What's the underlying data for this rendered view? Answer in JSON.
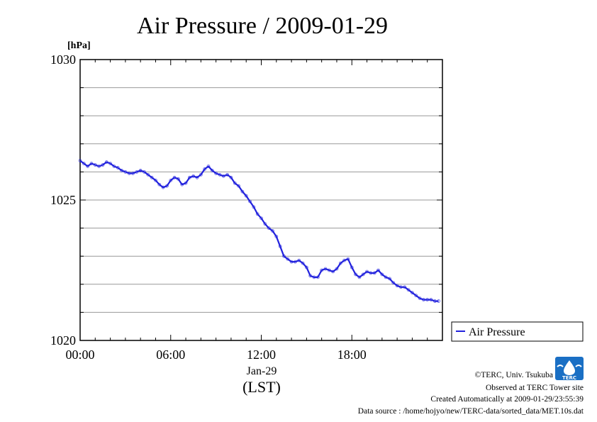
{
  "chart_data": {
    "type": "line",
    "title": "Air Pressure / 2009-01-29",
    "ylabel": "[hPa]",
    "ylim": [
      1020,
      1030
    ],
    "yticks": [
      "1030",
      "1025",
      "1020"
    ],
    "y_minor_step": 1,
    "xlim": [
      0,
      24
    ],
    "xticks": [
      {
        "value": 0,
        "label": "00:00"
      },
      {
        "value": 6,
        "label": "06:00"
      },
      {
        "value": 12,
        "label": "12:00"
      },
      {
        "value": 18,
        "label": "18:00"
      }
    ],
    "x_sublabel": "Jan-29",
    "x_unit_label": "(LST)",
    "grid": "horizontal",
    "legend_position": "right",
    "series": [
      {
        "name": "Air Pressure",
        "color": "#2222dd",
        "x": [
          0.0,
          0.25,
          0.5,
          0.75,
          1.0,
          1.25,
          1.5,
          1.75,
          2.0,
          2.25,
          2.5,
          2.75,
          3.0,
          3.25,
          3.5,
          3.75,
          4.0,
          4.25,
          4.5,
          4.75,
          5.0,
          5.25,
          5.5,
          5.75,
          6.0,
          6.25,
          6.5,
          6.75,
          7.0,
          7.25,
          7.5,
          7.75,
          8.0,
          8.25,
          8.5,
          8.75,
          9.0,
          9.25,
          9.5,
          9.75,
          10.0,
          10.25,
          10.5,
          10.75,
          11.0,
          11.25,
          11.5,
          11.75,
          12.0,
          12.25,
          12.5,
          12.75,
          13.0,
          13.25,
          13.5,
          13.75,
          14.0,
          14.25,
          14.5,
          14.75,
          15.0,
          15.25,
          15.5,
          15.75,
          16.0,
          16.25,
          16.5,
          16.75,
          17.0,
          17.25,
          17.5,
          17.75,
          18.0,
          18.25,
          18.5,
          18.75,
          19.0,
          19.25,
          19.5,
          19.75,
          20.0,
          20.25,
          20.5,
          20.75,
          21.0,
          21.25,
          21.5,
          21.75,
          22.0,
          22.25,
          22.5,
          22.75,
          23.0,
          23.25,
          23.5,
          23.75
        ],
        "values": [
          1026.4,
          1026.3,
          1026.2,
          1026.3,
          1026.25,
          1026.2,
          1026.25,
          1026.35,
          1026.3,
          1026.2,
          1026.15,
          1026.05,
          1026.0,
          1025.95,
          1025.95,
          1026.0,
          1026.05,
          1026.0,
          1025.9,
          1025.8,
          1025.7,
          1025.55,
          1025.45,
          1025.5,
          1025.7,
          1025.8,
          1025.75,
          1025.55,
          1025.6,
          1025.8,
          1025.85,
          1025.8,
          1025.9,
          1026.1,
          1026.2,
          1026.05,
          1025.95,
          1025.9,
          1025.85,
          1025.9,
          1025.8,
          1025.6,
          1025.5,
          1025.3,
          1025.15,
          1024.95,
          1024.75,
          1024.5,
          1024.35,
          1024.15,
          1024.0,
          1023.9,
          1023.7,
          1023.35,
          1023.0,
          1022.9,
          1022.8,
          1022.8,
          1022.85,
          1022.75,
          1022.6,
          1022.3,
          1022.25,
          1022.25,
          1022.5,
          1022.55,
          1022.5,
          1022.45,
          1022.55,
          1022.75,
          1022.85,
          1022.9,
          1022.6,
          1022.35,
          1022.25,
          1022.35,
          1022.45,
          1022.4,
          1022.4,
          1022.5,
          1022.35,
          1022.25,
          1022.2,
          1022.05,
          1021.95,
          1021.9,
          1021.9,
          1021.8,
          1021.7,
          1021.6,
          1021.5,
          1021.45,
          1021.45,
          1021.45,
          1021.4,
          1021.4
        ]
      }
    ]
  },
  "credits": {
    "copyright": "©TERC, Univ. Tsukuba",
    "observed": "Observed at TERC Tower site",
    "created": "Created Automatically at 2009-01-29/23:55:39",
    "source": "Data source : /home/hojyo/new/TERC-data/sorted_data/MET.10s.dat",
    "logo_text": "TERC",
    "logo_color": "#1a6fc4"
  }
}
